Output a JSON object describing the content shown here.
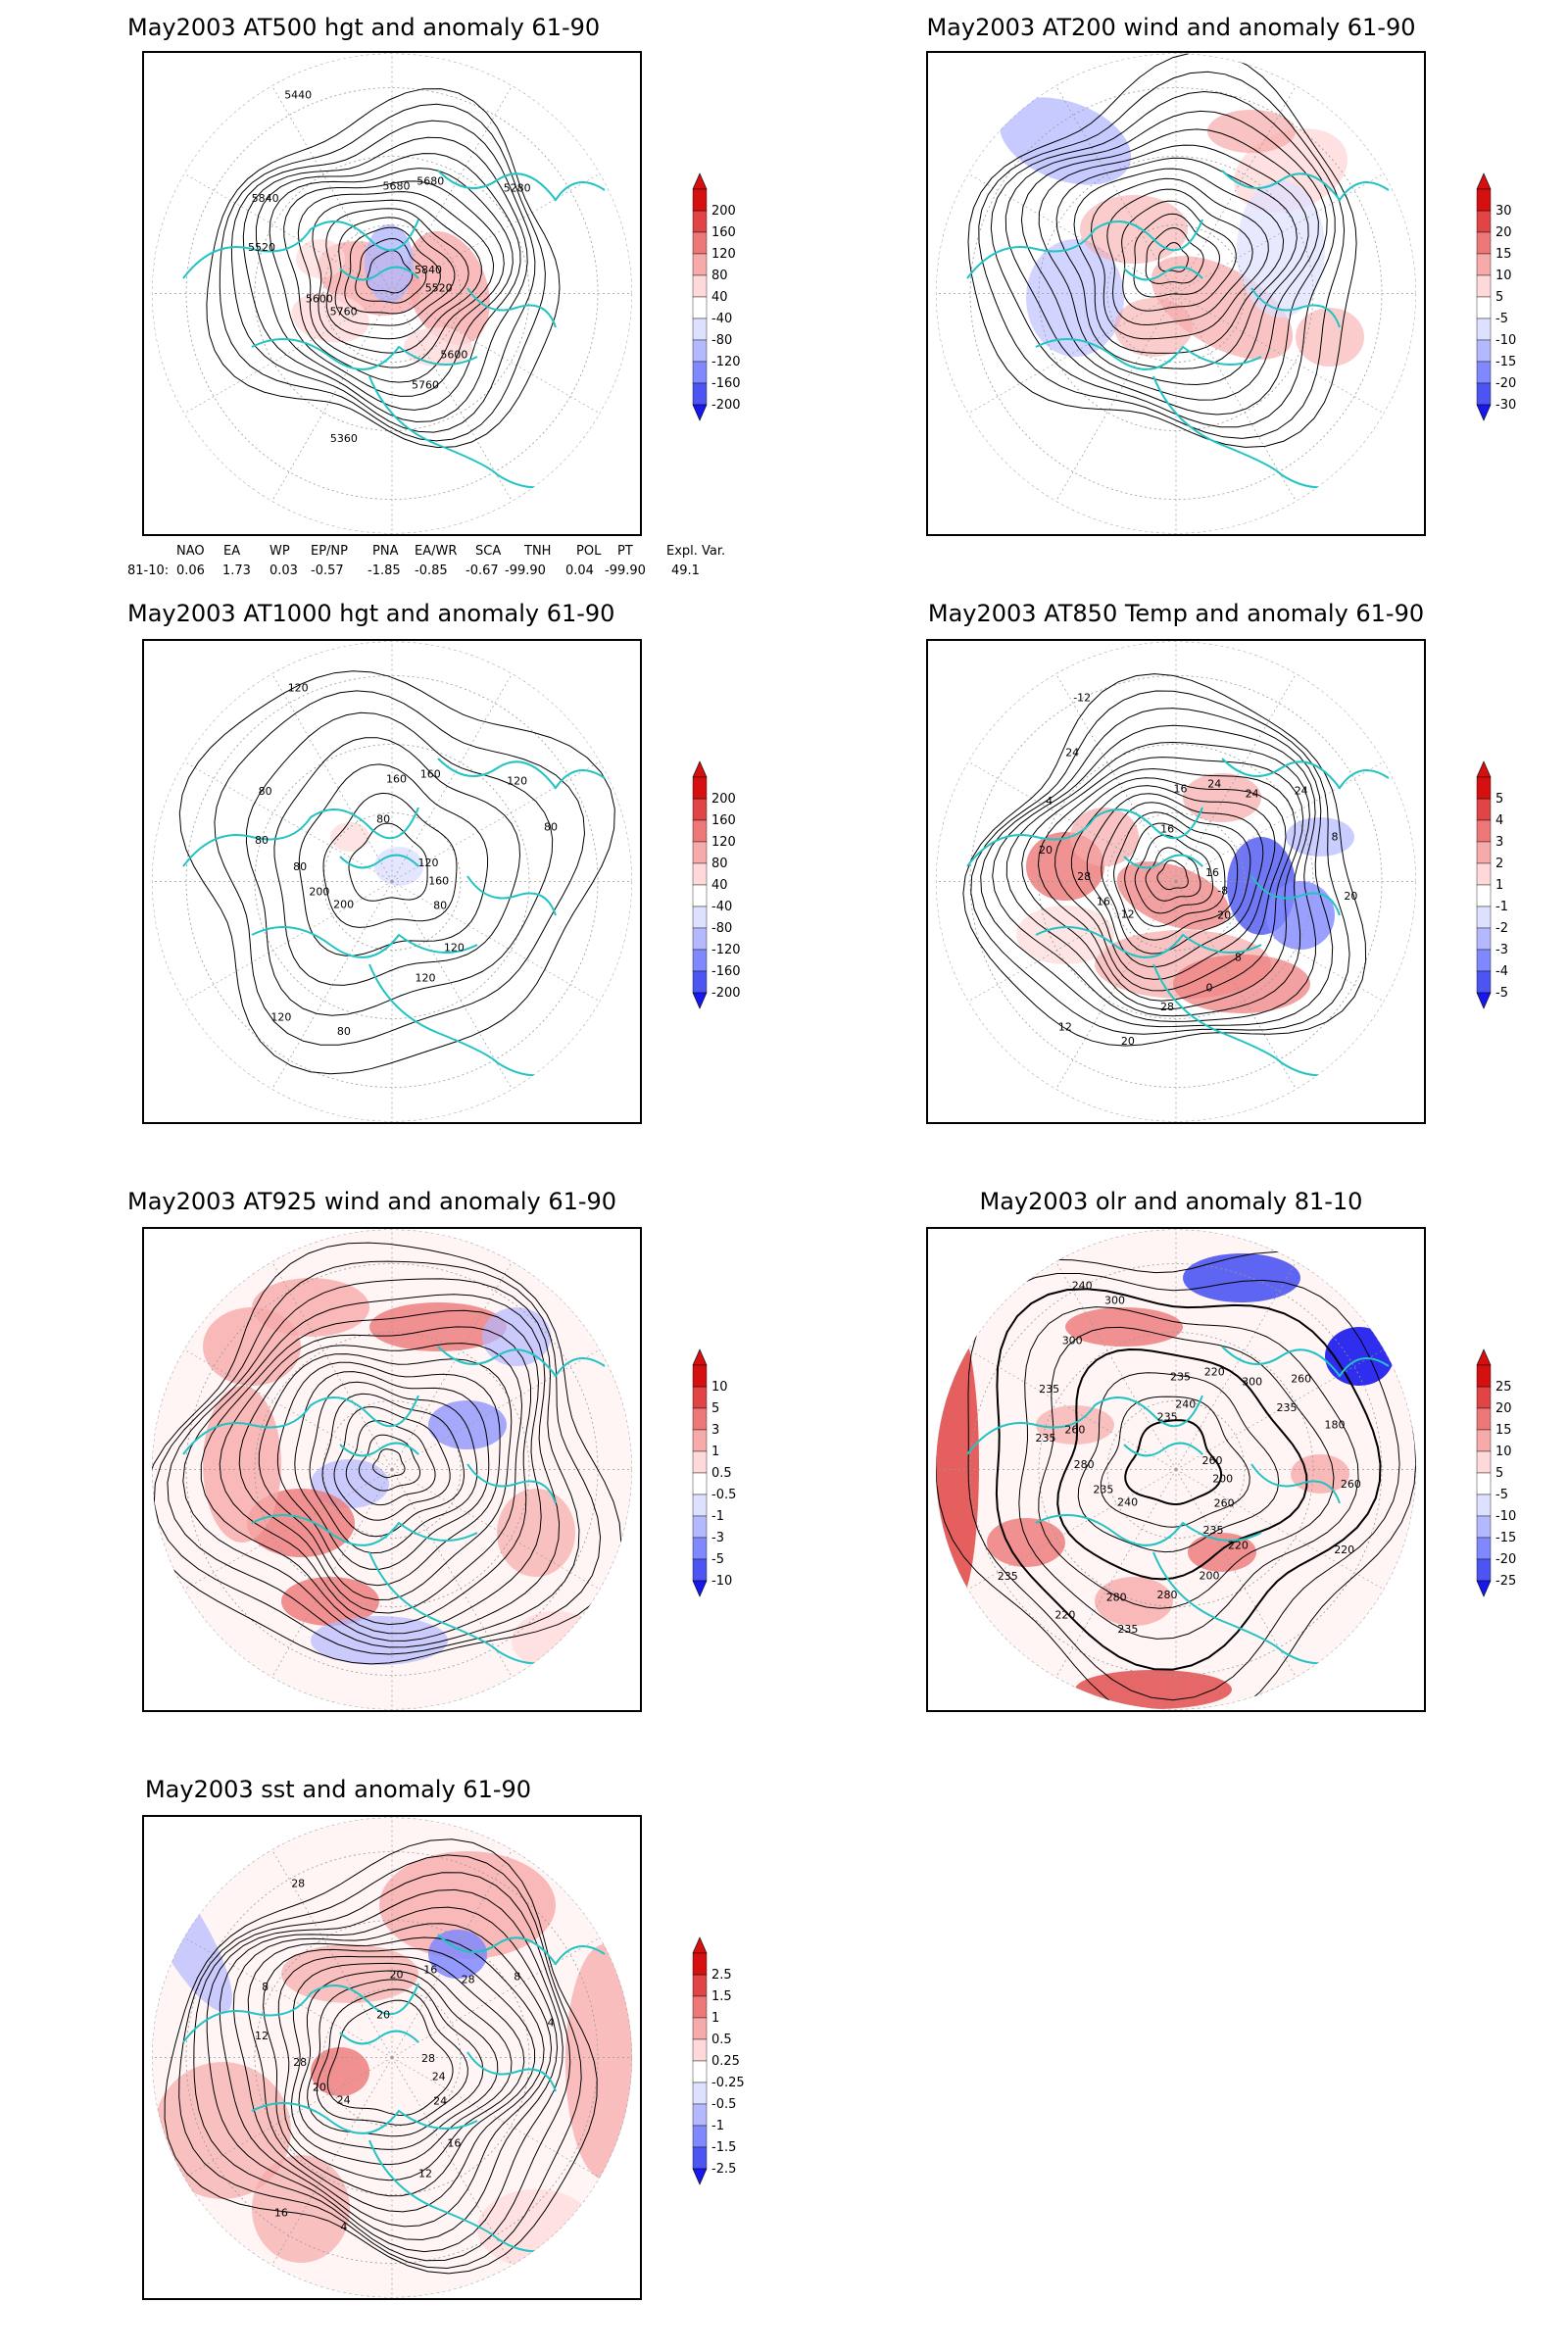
{
  "panels": [
    {
      "id": "p1",
      "title": "May2003 AT500 hgt and anomaly 61-90",
      "colorbar_labels": [
        "200",
        "160",
        "120",
        "80",
        "40",
        "-40",
        "-80",
        "-120",
        "-160",
        "-200"
      ],
      "contour_labels": [
        "5840",
        "5760",
        "5680",
        "5600",
        "5520",
        "5280",
        "5360",
        "5440",
        "5520",
        "5600",
        "5680",
        "5760",
        "5840"
      ]
    },
    {
      "id": "p2",
      "title": "May2003 AT200 wind and anomaly 61-90",
      "colorbar_labels": [
        "30",
        "20",
        "15",
        "10",
        "5",
        "-5",
        "-10",
        "-15",
        "-20",
        "-30"
      ],
      "contour_labels": []
    },
    {
      "id": "p3",
      "title": "May2003 AT1000 hgt and anomaly 61-90",
      "colorbar_labels": [
        "200",
        "160",
        "120",
        "80",
        "40",
        "-40",
        "-80",
        "-120",
        "-160",
        "-200"
      ],
      "contour_labels": [
        "120",
        "200",
        "160",
        "120",
        "80",
        "120",
        "80",
        "120",
        "160",
        "200",
        "160",
        "120",
        "80",
        "80",
        "120",
        "80",
        "80",
        "80"
      ]
    },
    {
      "id": "p4",
      "title": "May2003 AT850 Temp and anomaly 61-90",
      "colorbar_labels": [
        "5",
        "4",
        "3",
        "2",
        "1",
        "-1",
        "-2",
        "-3",
        "-4",
        "-5"
      ],
      "contour_labels": [
        "16",
        "12",
        "16",
        "8",
        "20",
        "24",
        "20",
        "-12",
        "-8",
        "16",
        "24",
        "0",
        "4",
        "8",
        "12",
        "16",
        "20",
        "28",
        "24",
        "28",
        "24",
        "20"
      ]
    },
    {
      "id": "p5",
      "title": "May2003 AT925 wind and anomaly 61-90",
      "colorbar_labels": [
        "10",
        "5",
        "3",
        "1",
        "0.5",
        "-0.5",
        "-1",
        "-3",
        "-5",
        "-10"
      ],
      "contour_labels": []
    },
    {
      "id": "p6",
      "title": "May2003 olr and anomaly 81-10",
      "colorbar_labels": [
        "25",
        "20",
        "15",
        "10",
        "5",
        "-5",
        "-10",
        "-15",
        "-20",
        "-25"
      ],
      "contour_labels": [
        "260",
        "240",
        "235",
        "220",
        "235",
        "260",
        "235",
        "240",
        "200",
        "235",
        "220",
        "200",
        "235",
        "180",
        "220",
        "235",
        "260",
        "280",
        "300",
        "280",
        "300",
        "260",
        "235",
        "240",
        "235",
        "260",
        "235",
        "280",
        "300",
        "220"
      ]
    },
    {
      "id": "p7",
      "title": "May2003 sst and anomaly 61-90",
      "colorbar_labels": [
        "2.5",
        "1.5",
        "1",
        "0.5",
        "0.25",
        "-0.25",
        "-0.5",
        "-1",
        "-1.5",
        "-2.5"
      ],
      "contour_labels": [
        "28",
        "24",
        "20",
        "16",
        "12",
        "8",
        "4",
        "28",
        "24",
        "20",
        "16",
        "12",
        "8",
        "4",
        "16",
        "20",
        "24",
        "28",
        "28"
      ]
    }
  ],
  "teleconnection_indices": {
    "headers": [
      "NAO",
      "EA",
      "WP",
      "EP/NP",
      "PNA",
      "EA/WR",
      "SCA",
      "TNH",
      "POL",
      "PT",
      "Expl. Var."
    ],
    "row_label": "81-10:",
    "values": [
      "0.06",
      "1.73",
      "0.03",
      "-0.57",
      "-1.85",
      "-0.85",
      "-0.67",
      "-99.90",
      "0.04",
      "-99.90",
      "49.1"
    ]
  },
  "colors": {
    "frame": "#000000",
    "coastline": "#22c3c3",
    "contour": "#000000",
    "grid": "#999999",
    "positive_scale": [
      "#ffd9d9",
      "#f7aaaa",
      "#ee7777",
      "#e04444",
      "#d41010"
    ],
    "negative_scale": [
      "#dde0ff",
      "#b3b8ff",
      "#8088ff",
      "#4c55f2",
      "#1818ee"
    ]
  }
}
